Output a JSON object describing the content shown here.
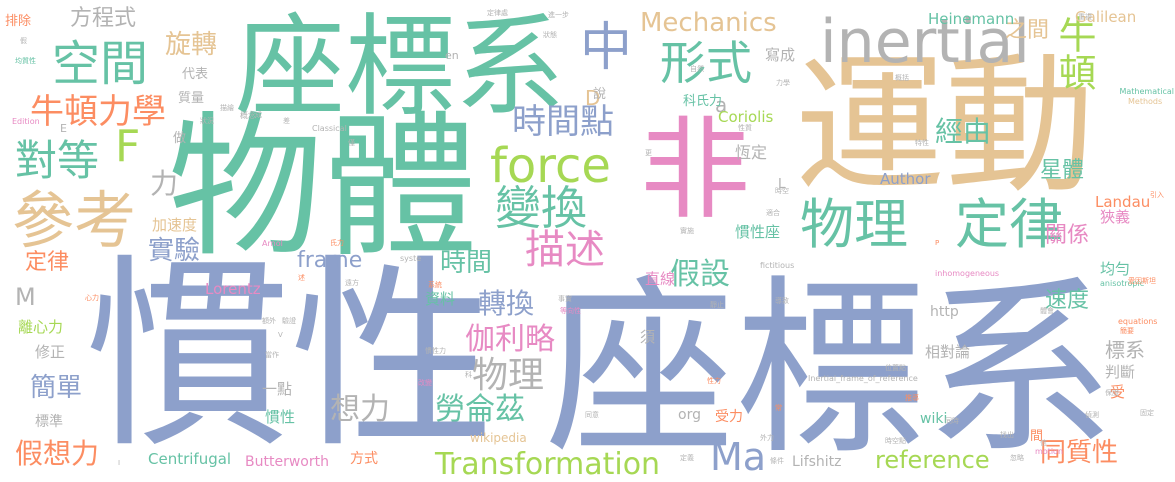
{
  "background_color": "#ffffff",
  "palette": {
    "blue": "#8DA0CB",
    "green": "#66C2A5",
    "tan": "#E5C494",
    "lime": "#A6D854",
    "pink": "#E78AC3",
    "orange": "#FC8D62",
    "yellow": "#FFD92F",
    "gray": "#B3B3B3"
  },
  "words": [
    {
      "text": "慣性",
      "color": "blue",
      "weight": 100
    },
    {
      "text": "座標系",
      "color": "blue",
      "weight": 98
    },
    {
      "text": "物體",
      "color": "green",
      "weight": 92
    },
    {
      "text": "運動",
      "color": "tan",
      "weight": 90
    },
    {
      "text": "座標系",
      "color": "green",
      "weight": 78
    },
    {
      "text": "非",
      "color": "pink",
      "weight": 75
    },
    {
      "text": "inertial",
      "color": "gray",
      "weight": 40
    },
    {
      "text": "參考",
      "color": "tan",
      "weight": 40
    },
    {
      "text": "物理",
      "color": "green",
      "weight": 38
    },
    {
      "text": "定律",
      "color": "green",
      "weight": 38
    },
    {
      "text": "空間",
      "color": "green",
      "weight": 34
    },
    {
      "text": "force",
      "color": "lime",
      "weight": 34
    },
    {
      "text": "變換",
      "color": "green",
      "weight": 32
    },
    {
      "text": "形式",
      "color": "green",
      "weight": 32
    },
    {
      "text": "中",
      "color": "blue",
      "weight": 32
    },
    {
      "text": "牛頓",
      "color": "lime",
      "weight": 30
    },
    {
      "text": "描述",
      "color": "pink",
      "weight": 30
    },
    {
      "text": "對等",
      "color": "green",
      "weight": 28
    },
    {
      "text": "F",
      "color": "lime",
      "weight": 28
    },
    {
      "text": "牛頓力學",
      "color": "orange",
      "weight": 28
    },
    {
      "text": "時間點",
      "color": "blue",
      "weight": 28
    },
    {
      "text": "物理",
      "color": "gray",
      "weight": 26
    },
    {
      "text": "Transformation",
      "color": "lime",
      "weight": 26
    },
    {
      "text": "Ma",
      "color": "blue",
      "weight": 26
    },
    {
      "text": "Mechanics",
      "color": "tan",
      "weight": 24
    },
    {
      "text": "假設",
      "color": "green",
      "weight": 24
    },
    {
      "text": "伽利略",
      "color": "pink",
      "weight": 24
    },
    {
      "text": "勞侖茲",
      "color": "green",
      "weight": 24
    },
    {
      "text": "想力",
      "color": "gray",
      "weight": 24
    },
    {
      "text": "轉換",
      "color": "blue",
      "weight": 22
    },
    {
      "text": "經由",
      "color": "green",
      "weight": 22
    },
    {
      "text": "旋轉",
      "color": "tan",
      "weight": 20
    },
    {
      "text": "實驗",
      "color": "blue",
      "weight": 20
    },
    {
      "text": "簡單",
      "color": "blue",
      "weight": 20
    },
    {
      "text": "假想力",
      "color": "orange",
      "weight": 20
    },
    {
      "text": "reference",
      "color": "lime",
      "weight": 20
    },
    {
      "text": "同質性",
      "color": "orange",
      "weight": 20
    },
    {
      "text": "方程式",
      "color": "gray",
      "weight": 18
    },
    {
      "text": "之間",
      "color": "tan",
      "weight": 18
    },
    {
      "text": "時間",
      "color": "green",
      "weight": 18
    },
    {
      "text": "frame",
      "color": "blue",
      "weight": 18
    },
    {
      "text": "星體",
      "color": "green",
      "weight": 18
    },
    {
      "text": "關係",
      "color": "pink",
      "weight": 18
    },
    {
      "text": "速度",
      "color": "green",
      "weight": 18
    },
    {
      "text": "力",
      "color": "gray",
      "weight": 18
    },
    {
      "text": "定律",
      "color": "orange",
      "weight": 18
    },
    {
      "text": "M",
      "color": "gray",
      "weight": 18
    },
    {
      "text": "標系",
      "color": "gray",
      "weight": 18
    },
    {
      "text": "D",
      "color": "tan",
      "weight": 16
    },
    {
      "text": "a",
      "color": "gray",
      "weight": 16
    },
    {
      "text": "Heinemann",
      "color": "green",
      "weight": 14
    },
    {
      "text": "Galilean",
      "color": "tan",
      "weight": 14
    },
    {
      "text": "寫成",
      "color": "gray",
      "weight": 14
    },
    {
      "text": "Coriolis",
      "color": "lime",
      "weight": 14
    },
    {
      "text": "恆定",
      "color": "gray",
      "weight": 14
    },
    {
      "text": "Landau",
      "color": "orange",
      "weight": 14
    },
    {
      "text": "狹義",
      "color": "pink",
      "weight": 14
    },
    {
      "text": "均勻",
      "color": "green",
      "weight": 14
    },
    {
      "text": "慣性座",
      "color": "green",
      "weight": 14
    },
    {
      "text": "直線",
      "color": "pink",
      "weight": 14
    },
    {
      "text": "Lorentz",
      "color": "pink",
      "weight": 14
    },
    {
      "text": "加速度",
      "color": "tan",
      "weight": 14
    },
    {
      "text": "Author",
      "color": "blue",
      "weight": 14
    },
    {
      "text": "資料",
      "color": "green",
      "weight": 14
    },
    {
      "text": "須",
      "color": "gray",
      "weight": 14
    },
    {
      "text": "相對論",
      "color": "gray",
      "weight": 14
    },
    {
      "text": "判斷",
      "color": "gray",
      "weight": 14
    },
    {
      "text": "受",
      "color": "orange",
      "weight": 14
    },
    {
      "text": "離心力",
      "color": "lime",
      "weight": 14
    },
    {
      "text": "修正",
      "color": "gray",
      "weight": 14
    },
    {
      "text": "一點",
      "color": "gray",
      "weight": 14
    },
    {
      "text": "慣性",
      "color": "green",
      "weight": 14
    },
    {
      "text": "標準",
      "color": "gray",
      "weight": 14
    },
    {
      "text": "受力",
      "color": "orange",
      "weight": 14
    },
    {
      "text": "http",
      "color": "gray",
      "weight": 14
    },
    {
      "text": "wiki",
      "color": "green",
      "weight": 14
    },
    {
      "text": "org",
      "color": "gray",
      "weight": 14
    },
    {
      "text": "Centrifugal",
      "color": "green",
      "weight": 14
    },
    {
      "text": "Butterworth",
      "color": "pink",
      "weight": 14
    },
    {
      "text": "方式",
      "color": "orange",
      "weight": 14
    },
    {
      "text": "Lifshitz",
      "color": "gray",
      "weight": 14
    },
    {
      "text": "wikipedia",
      "color": "tan",
      "weight": 12
    },
    {
      "text": "間",
      "color": "orange",
      "weight": 12
    },
    {
      "text": "L",
      "color": "gray",
      "weight": 12
    },
    {
      "text": "排除",
      "color": "orange",
      "weight": 12
    },
    {
      "text": "代表",
      "color": "gray",
      "weight": 12
    },
    {
      "text": "質量",
      "color": "gray",
      "weight": 12
    },
    {
      "text": "做",
      "color": "gray",
      "weight": 12
    },
    {
      "text": "說",
      "color": "gray",
      "weight": 12
    },
    {
      "text": "科氏力",
      "color": "green",
      "weight": 12
    },
    {
      "text": "en",
      "color": "gray",
      "weight": 10
    },
    {
      "text": "E",
      "color": "gray",
      "weight": 10
    },
    {
      "text": "概念",
      "color": "gray",
      "weight": 8
    },
    {
      "text": "Classical",
      "color": "gray",
      "weight": 8
    },
    {
      "text": "Mathematical",
      "color": "green",
      "weight": 8
    },
    {
      "text": "Methods",
      "color": "tan",
      "weight": 8
    },
    {
      "text": "anisotropic",
      "color": "green",
      "weight": 8
    },
    {
      "text": "equations",
      "color": "orange",
      "weight": 8
    },
    {
      "text": "inhomogeneous",
      "color": "pink",
      "weight": 8
    },
    {
      "text": "Inertial_frame_of_reference",
      "color": "gray",
      "weight": 8
    },
    {
      "text": "motion",
      "color": "pink",
      "weight": 8
    },
    {
      "text": "fictitious",
      "color": "gray",
      "weight": 8
    },
    {
      "text": "Edition",
      "color": "pink",
      "weight": 8
    },
    {
      "text": "Arnol",
      "color": "pink",
      "weight": 8
    },
    {
      "text": "syste",
      "color": "gray",
      "weight": 8
    },
    {
      "text": "定律處",
      "color": "gray",
      "weight": 7
    },
    {
      "text": "進一步",
      "color": "gray",
      "weight": 7
    },
    {
      "text": "狀態",
      "color": "gray",
      "weight": 7
    },
    {
      "text": "均質性",
      "color": "green",
      "weight": 7
    },
    {
      "text": "自然",
      "color": "gray",
      "weight": 7
    },
    {
      "text": "力學",
      "color": "gray",
      "weight": 7
    },
    {
      "text": "概括",
      "color": "gray",
      "weight": 7
    },
    {
      "text": "重複",
      "color": "gray",
      "weight": 7
    },
    {
      "text": "性質",
      "color": "gray",
      "weight": 7
    },
    {
      "text": "特性",
      "color": "gray",
      "weight": 7
    },
    {
      "text": "時空",
      "color": "gray",
      "weight": 7
    },
    {
      "text": "適合",
      "color": "gray",
      "weight": 7
    },
    {
      "text": "氏力",
      "color": "orange",
      "weight": 7
    },
    {
      "text": "實施",
      "color": "gray",
      "weight": 7
    },
    {
      "text": "系統",
      "color": "orange",
      "weight": 7
    },
    {
      "text": "遠方",
      "color": "gray",
      "weight": 7
    },
    {
      "text": "事實",
      "color": "gray",
      "weight": 7
    },
    {
      "text": "等向性",
      "color": "pink",
      "weight": 7
    },
    {
      "text": "導致",
      "color": "gray",
      "weight": 7
    },
    {
      "text": "靜止",
      "color": "gray",
      "weight": 7
    },
    {
      "text": "體會",
      "color": "gray",
      "weight": 7
    },
    {
      "text": "愛因斯坦",
      "color": "orange",
      "weight": 7
    },
    {
      "text": "引入",
      "color": "orange",
      "weight": 7
    },
    {
      "text": "簡要",
      "color": "orange",
      "weight": 7
    },
    {
      "text": "慣性力",
      "color": "gray",
      "weight": 7
    },
    {
      "text": "位置點",
      "color": "gray",
      "weight": 7
    },
    {
      "text": "性力",
      "color": "orange",
      "weight": 7
    },
    {
      "text": "改變",
      "color": "pink",
      "weight": 7
    },
    {
      "text": "推導",
      "color": "orange",
      "weight": 7
    },
    {
      "text": "偵測",
      "color": "gray",
      "weight": 7
    },
    {
      "text": "保證",
      "color": "gray",
      "weight": 7
    },
    {
      "text": "固定",
      "color": "gray",
      "weight": 7
    },
    {
      "text": "同時",
      "color": "gray",
      "weight": 7
    },
    {
      "text": "同意",
      "color": "gray",
      "weight": 7
    },
    {
      "text": "外力",
      "color": "gray",
      "weight": 7
    },
    {
      "text": "時空點",
      "color": "gray",
      "weight": 7
    },
    {
      "text": "忽略",
      "color": "gray",
      "weight": 7
    },
    {
      "text": "條件",
      "color": "gray",
      "weight": 7
    },
    {
      "text": "定義",
      "color": "gray",
      "weight": 7
    },
    {
      "text": "當作",
      "color": "gray",
      "weight": 7
    },
    {
      "text": "額外",
      "color": "gray",
      "weight": 7
    },
    {
      "text": "驗證",
      "color": "gray",
      "weight": 7
    },
    {
      "text": "心力",
      "color": "orange",
      "weight": 7
    },
    {
      "text": "描繪",
      "color": "gray",
      "weight": 7
    },
    {
      "text": "狀況",
      "color": "gray",
      "weight": 7
    },
    {
      "text": "僅",
      "color": "gray",
      "weight": 7
    },
    {
      "text": "差",
      "color": "gray",
      "weight": 7
    },
    {
      "text": "更",
      "color": "gray",
      "weight": 7
    },
    {
      "text": "述",
      "color": "orange",
      "weight": 7
    },
    {
      "text": "成",
      "color": "gray",
      "weight": 7
    },
    {
      "text": "科",
      "color": "gray",
      "weight": 7
    },
    {
      "text": "常",
      "color": "orange",
      "weight": 7
    },
    {
      "text": "找出",
      "color": "gray",
      "weight": 7
    },
    {
      "text": "信",
      "color": "gray",
      "weight": 7
    },
    {
      "text": "假",
      "color": "gray",
      "weight": 7
    },
    {
      "text": "P",
      "color": "orange",
      "weight": 7
    },
    {
      "text": "V",
      "color": "gray",
      "weight": 7
    },
    {
      "text": "I",
      "color": "gray",
      "weight": 7
    }
  ]
}
